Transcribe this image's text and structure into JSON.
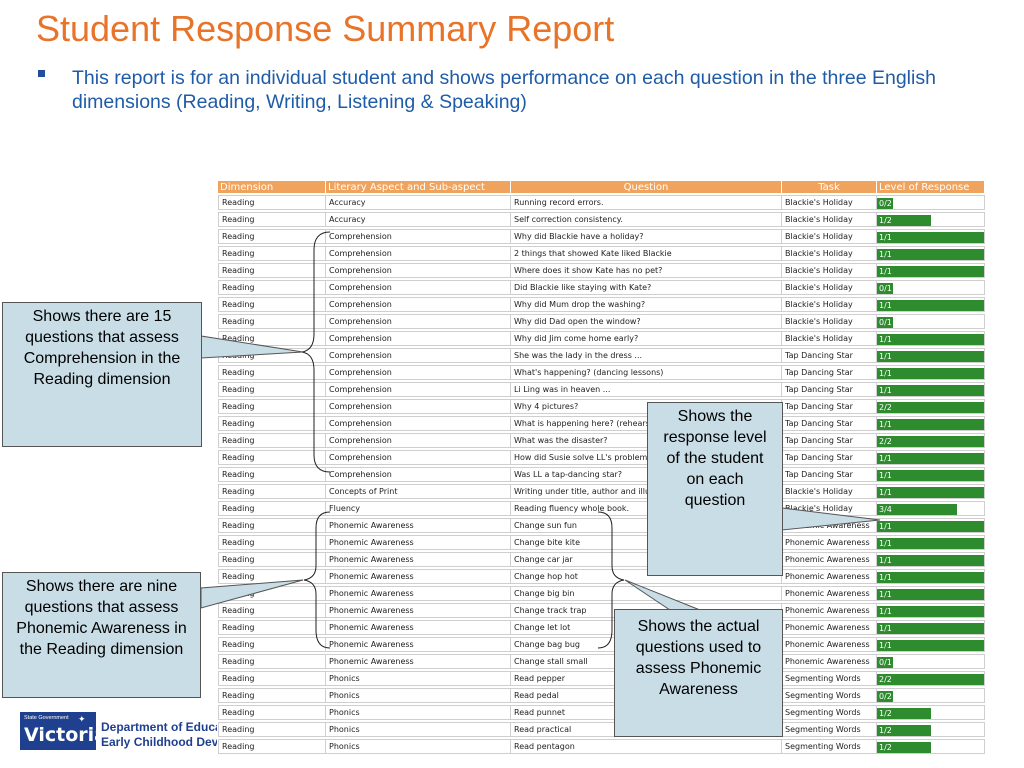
{
  "slide": {
    "title": "Student Response Summary Report",
    "bullet": "This report is for an individual student and shows performance on each question in the three English dimensions (Reading, Writing, Listening & Speaking)"
  },
  "table": {
    "headers": [
      "Dimension",
      "Literary Aspect and Sub-aspect",
      "Question",
      "Task",
      "Level of Response"
    ],
    "rows": [
      {
        "dimension": "Reading",
        "aspect": "Accuracy",
        "question": "Running record errors.",
        "task": "Blackie's Holiday",
        "level": "0/2",
        "fill": 0.0
      },
      {
        "dimension": "Reading",
        "aspect": "Accuracy",
        "question": "Self correction consistency.",
        "task": "Blackie's Holiday",
        "level": "1/2",
        "fill": 0.5
      },
      {
        "dimension": "Reading",
        "aspect": "Comprehension",
        "question": "Why did Blackie have a holiday?",
        "task": "Blackie's Holiday",
        "level": "1/1",
        "fill": 1.0
      },
      {
        "dimension": "Reading",
        "aspect": "Comprehension",
        "question": "2 things that showed Kate liked Blackie",
        "task": "Blackie's Holiday",
        "level": "1/1",
        "fill": 1.0
      },
      {
        "dimension": "Reading",
        "aspect": "Comprehension",
        "question": "Where does it show Kate has no pet?",
        "task": "Blackie's Holiday",
        "level": "1/1",
        "fill": 1.0
      },
      {
        "dimension": "Reading",
        "aspect": "Comprehension",
        "question": "Did Blackie like staying with Kate?",
        "task": "Blackie's Holiday",
        "level": "0/1",
        "fill": 0.0
      },
      {
        "dimension": "Reading",
        "aspect": "Comprehension",
        "question": "Why did Mum drop the washing?",
        "task": "Blackie's Holiday",
        "level": "1/1",
        "fill": 1.0
      },
      {
        "dimension": "Reading",
        "aspect": "Comprehension",
        "question": "Why did Dad open the window?",
        "task": "Blackie's Holiday",
        "level": "0/1",
        "fill": 0.0
      },
      {
        "dimension": "Reading",
        "aspect": "Comprehension",
        "question": "Why did Jim come home early?",
        "task": "Blackie's Holiday",
        "level": "1/1",
        "fill": 1.0
      },
      {
        "dimension": "Reading",
        "aspect": "Comprehension",
        "question": "She was the lady in the dress ...",
        "task": "Tap Dancing Star",
        "level": "1/1",
        "fill": 1.0
      },
      {
        "dimension": "Reading",
        "aspect": "Comprehension",
        "question": "What's happening? (dancing lessons)",
        "task": "Tap Dancing Star",
        "level": "1/1",
        "fill": 1.0
      },
      {
        "dimension": "Reading",
        "aspect": "Comprehension",
        "question": "Li Ling was in heaven ...",
        "task": "Tap Dancing Star",
        "level": "1/1",
        "fill": 1.0
      },
      {
        "dimension": "Reading",
        "aspect": "Comprehension",
        "question": "Why 4 pictures?",
        "task": "Tap Dancing Star",
        "level": "2/2",
        "fill": 1.0
      },
      {
        "dimension": "Reading",
        "aspect": "Comprehension",
        "question": "What is happening here? (rehearsal)",
        "task": "Tap Dancing Star",
        "level": "1/1",
        "fill": 1.0
      },
      {
        "dimension": "Reading",
        "aspect": "Comprehension",
        "question": "What was the disaster?",
        "task": "Tap Dancing Star",
        "level": "2/2",
        "fill": 1.0
      },
      {
        "dimension": "Reading",
        "aspect": "Comprehension",
        "question": "How did Susie solve LL's problem?",
        "task": "Tap Dancing Star",
        "level": "1/1",
        "fill": 1.0
      },
      {
        "dimension": "Reading",
        "aspect": "Comprehension",
        "question": "Was LL a tap-dancing star?",
        "task": "Tap Dancing Star",
        "level": "1/1",
        "fill": 1.0
      },
      {
        "dimension": "Reading",
        "aspect": "Concepts of Print",
        "question": "Writing under title, author and illustrator",
        "task": "Blackie's Holiday",
        "level": "1/1",
        "fill": 1.0
      },
      {
        "dimension": "Reading",
        "aspect": "Fluency",
        "question": "Reading fluency whole book.",
        "task": "Blackie's Holiday",
        "level": "3/4",
        "fill": 0.75
      },
      {
        "dimension": "Reading",
        "aspect": "Phonemic Awareness",
        "question": "Change sun fun",
        "task": "Phonemic Awareness",
        "level": "1/1",
        "fill": 1.0
      },
      {
        "dimension": "Reading",
        "aspect": "Phonemic Awareness",
        "question": "Change bite kite",
        "task": "Phonemic Awareness",
        "level": "1/1",
        "fill": 1.0
      },
      {
        "dimension": "Reading",
        "aspect": "Phonemic Awareness",
        "question": "Change car jar",
        "task": "Phonemic Awareness",
        "level": "1/1",
        "fill": 1.0
      },
      {
        "dimension": "Reading",
        "aspect": "Phonemic Awareness",
        "question": "Change hop hot",
        "task": "Phonemic Awareness",
        "level": "1/1",
        "fill": 1.0
      },
      {
        "dimension": "Reading",
        "aspect": "Phonemic Awareness",
        "question": "Change big bin",
        "task": "Phonemic Awareness",
        "level": "1/1",
        "fill": 1.0
      },
      {
        "dimension": "Reading",
        "aspect": "Phonemic Awareness",
        "question": "Change track trap",
        "task": "Phonemic Awareness",
        "level": "1/1",
        "fill": 1.0
      },
      {
        "dimension": "Reading",
        "aspect": "Phonemic Awareness",
        "question": "Change let lot",
        "task": "Phonemic Awareness",
        "level": "1/1",
        "fill": 1.0
      },
      {
        "dimension": "Reading",
        "aspect": "Phonemic Awareness",
        "question": "Change bag bug",
        "task": "Phonemic Awareness",
        "level": "1/1",
        "fill": 1.0
      },
      {
        "dimension": "Reading",
        "aspect": "Phonemic Awareness",
        "question": "Change stall small",
        "task": "Phonemic Awareness",
        "level": "0/1",
        "fill": 0.0
      },
      {
        "dimension": "Reading",
        "aspect": "Phonics",
        "question": "Read pepper",
        "task": "Segmenting Words",
        "level": "2/2",
        "fill": 1.0
      },
      {
        "dimension": "Reading",
        "aspect": "Phonics",
        "question": "Read pedal",
        "task": "Segmenting Words",
        "level": "0/2",
        "fill": 0.0
      },
      {
        "dimension": "Reading",
        "aspect": "Phonics",
        "question": "Read punnet",
        "task": "Segmenting Words",
        "level": "1/2",
        "fill": 0.5
      },
      {
        "dimension": "Reading",
        "aspect": "Phonics",
        "question": "Read practical",
        "task": "Segmenting Words",
        "level": "1/2",
        "fill": 0.5
      },
      {
        "dimension": "Reading",
        "aspect": "Phonics",
        "question": "Read pentagon",
        "task": "Segmenting Words",
        "level": "1/2",
        "fill": 0.5
      }
    ]
  },
  "callouts": {
    "comprehension": "Shows there are 15 questions that assess Comprehension in the Reading dimension",
    "phonemic": "Shows there are nine questions that assess Phonemic Awareness in the Reading dimension",
    "response": "Shows the response level of the student on each question",
    "actual": "Shows the actual questions used to assess Phonemic Awareness"
  },
  "footer": {
    "gov_small": "State Government",
    "state": "Victoria",
    "dept_line1": "Department of Education",
    "dept_line2": "Early Childhood Development"
  },
  "colors": {
    "title": "#e8742a",
    "header_bg": "#f0a35c",
    "bar": "#2e8b2e",
    "callout_bg": "#c8dde6"
  }
}
